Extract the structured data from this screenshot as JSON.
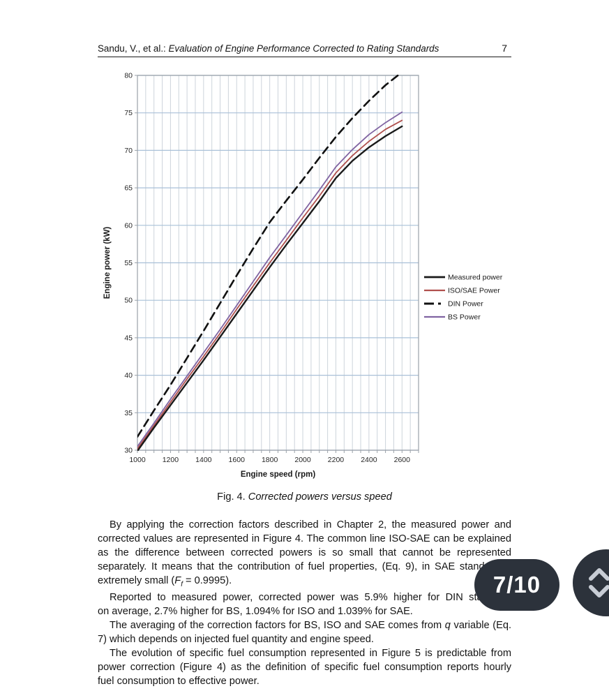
{
  "header": {
    "authors": "Sandu, V., et al.: ",
    "title_italic": "Evaluation of Engine Performance Corrected to Rating Standards",
    "page_number": "7"
  },
  "figure": {
    "caption_prefix": "Fig. 4. ",
    "caption_italic": "Corrected powers versus speed"
  },
  "chart_data": {
    "type": "line",
    "title": "",
    "xlabel": "Engine speed (rpm)",
    "ylabel": "Engine power (kW)",
    "xlim": [
      1000,
      2700
    ],
    "ylim": [
      30,
      80
    ],
    "x_major_ticks": [
      1000,
      1200,
      1400,
      1600,
      1800,
      2000,
      2200,
      2400,
      2600
    ],
    "x_minor_step": 50,
    "y_ticks": [
      30,
      35,
      40,
      45,
      50,
      55,
      60,
      65,
      70,
      75,
      80
    ],
    "grid": true,
    "legend_position": "right-outside",
    "colors": {
      "h_grid": "#a9c0d8",
      "v_grid": "#cdd4db",
      "frame": "#9aa1a8",
      "tick_text": "#262626"
    },
    "series": [
      {
        "name": "Measured power",
        "color": "#1a1a1a",
        "dash": null,
        "width": 2.4,
        "x": [
          1000,
          1100,
          1200,
          1300,
          1400,
          1500,
          1600,
          1700,
          1800,
          1900,
          2000,
          2100,
          2200,
          2300,
          2400,
          2500,
          2600
        ],
        "values": [
          29.9,
          33.0,
          36.0,
          39.0,
          42.0,
          45.1,
          48.2,
          51.3,
          54.4,
          57.4,
          60.3,
          63.2,
          66.3,
          68.6,
          70.4,
          71.9,
          73.2
        ]
      },
      {
        "name": "ISO/SAE Power",
        "color": "#b0504d",
        "dash": null,
        "width": 1.8,
        "x": [
          1000,
          1100,
          1200,
          1300,
          1400,
          1500,
          1600,
          1700,
          1800,
          1900,
          2000,
          2100,
          2200,
          2300,
          2400,
          2500,
          2600
        ],
        "values": [
          30.2,
          33.3,
          36.4,
          39.5,
          42.5,
          45.6,
          48.8,
          51.9,
          55.0,
          58.0,
          61.0,
          63.9,
          67.0,
          69.3,
          71.2,
          72.8,
          74.0
        ]
      },
      {
        "name": "DIN Power",
        "color": "#111111",
        "dash": [
          11,
          7
        ],
        "width": 2.6,
        "x": [
          1000,
          1100,
          1200,
          1300,
          1400,
          1500,
          1600,
          1700,
          1800,
          1900,
          2000,
          2100,
          2200,
          2300,
          2400,
          2500,
          2575
        ],
        "values": [
          31.8,
          35.3,
          38.7,
          42.3,
          45.9,
          49.6,
          53.3,
          56.9,
          60.4,
          63.3,
          66.1,
          69.0,
          71.8,
          74.3,
          76.6,
          78.7,
          80.0
        ]
      },
      {
        "name": "BS Power",
        "color": "#8064a2",
        "dash": null,
        "width": 1.8,
        "x": [
          1000,
          1100,
          1200,
          1300,
          1400,
          1500,
          1600,
          1700,
          1800,
          1900,
          2000,
          2100,
          2200,
          2300,
          2400,
          2500,
          2600
        ],
        "values": [
          30.5,
          33.6,
          36.8,
          39.9,
          43.0,
          46.1,
          49.3,
          52.5,
          55.7,
          58.7,
          61.7,
          64.7,
          67.8,
          70.1,
          72.1,
          73.7,
          75.1
        ]
      }
    ]
  },
  "body": {
    "paragraphs": [
      {
        "lines": [
          [
            {
              "t": "By applying the correction factors described in Chapter 2, the measured power and"
            }
          ],
          [
            {
              "t": "corrected values are represented in Figure 4. The common line ISO-SAE can be explained"
            }
          ],
          [
            {
              "t": "as the difference between corrected powers is so small that cannot be represented"
            }
          ],
          [
            {
              "t": "separately. It means that the contribution of fuel properties, (Eq. 9), in SAE standard is"
            }
          ],
          [
            {
              "t": "extremely small ("
            },
            {
              "t": "F",
              "i": true
            },
            {
              "t": "f",
              "i": true,
              "sub": true
            },
            {
              "t": " = 0.9995)."
            }
          ]
        ]
      },
      {
        "lines": [
          [
            {
              "t": "Reported to measured power, corrected power was 5.9% higher for DIN standard,"
            }
          ],
          [
            {
              "t": "on average, 2.7% higher for BS, 1.094% for ISO and 1.039% for SAE."
            }
          ]
        ]
      },
      {
        "lines": [
          [
            {
              "t": "The averaging of the correction factors for BS, ISO and SAE comes from "
            },
            {
              "t": "q",
              "i": true
            },
            {
              "t": " variable (Eq."
            }
          ],
          [
            {
              "t": "7) which depends on injected fuel quantity and engine speed."
            }
          ]
        ]
      },
      {
        "lines": [
          [
            {
              "t": "The evolution of specific fuel consumption represented in Figure 5 is predictable from"
            }
          ],
          [
            {
              "t": "power correction (Figure 4) as the definition of specific fuel consumption reports hourly"
            }
          ],
          [
            {
              "t": "fuel consumption to effective power."
            }
          ]
        ]
      }
    ]
  },
  "overlay": {
    "page_indicator": "7/10",
    "pill_color": "#2c323b",
    "chevron_color": "#c8cdd5"
  }
}
